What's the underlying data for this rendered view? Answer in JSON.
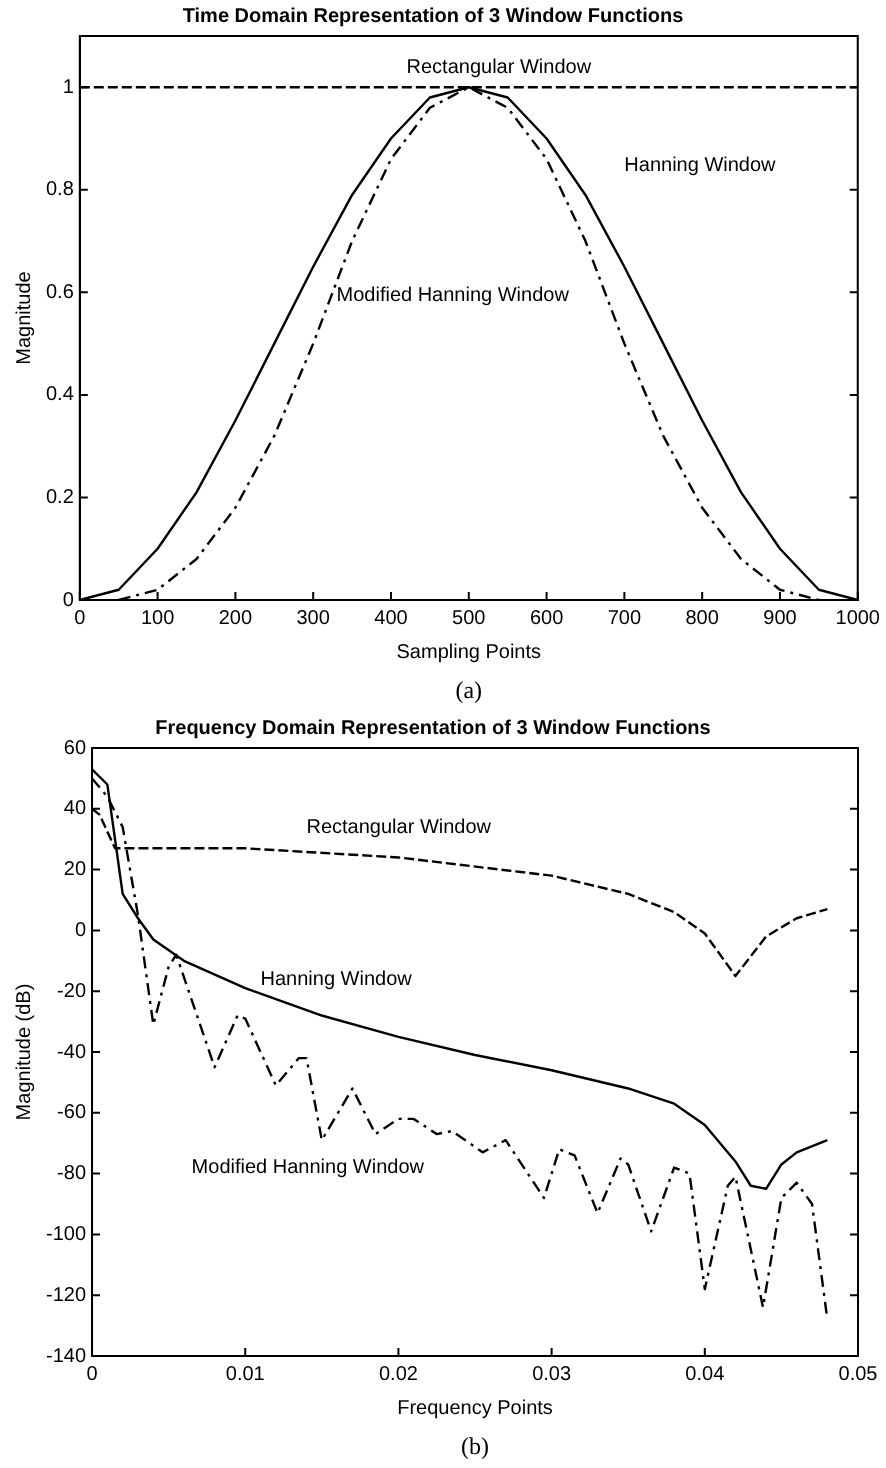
{
  "chart_data": [
    {
      "type": "line",
      "title": "Time Domain Representation of 3 Window Functions",
      "xlabel": "Sampling Points",
      "ylabel": "Magnitude",
      "xlim": [
        0,
        1000
      ],
      "xticks": [
        0,
        100,
        200,
        300,
        400,
        500,
        600,
        700,
        800,
        900,
        1000
      ],
      "ylim": [
        0,
        1.1
      ],
      "yticks": [
        0,
        0.2,
        0.4,
        0.6,
        0.8,
        1
      ],
      "grid": false,
      "legend": false,
      "marker": "none",
      "series": [
        {
          "name": "Rectangular Window",
          "color": "#000000",
          "line_style": "dashed",
          "x": [
            0,
            1000
          ],
          "values": [
            1,
            1
          ]
        },
        {
          "name": "Hanning Window",
          "color": "#000000",
          "line_style": "solid",
          "x": [
            0,
            50,
            100,
            150,
            200,
            250,
            300,
            350,
            400,
            450,
            500,
            550,
            600,
            650,
            700,
            750,
            800,
            850,
            900,
            950,
            1000
          ],
          "values": [
            0,
            0.02,
            0.1,
            0.21,
            0.35,
            0.5,
            0.65,
            0.79,
            0.9,
            0.98,
            1,
            0.98,
            0.9,
            0.79,
            0.65,
            0.5,
            0.35,
            0.21,
            0.1,
            0.02,
            0
          ]
        },
        {
          "name": "Modified Hanning Window",
          "color": "#000000",
          "line_style": "dashdot",
          "x": [
            50,
            100,
            150,
            200,
            250,
            300,
            350,
            400,
            450,
            500,
            550,
            600,
            650,
            700,
            750,
            800,
            850,
            900,
            950
          ],
          "values": [
            0,
            0.02,
            0.08,
            0.18,
            0.32,
            0.5,
            0.7,
            0.86,
            0.96,
            1,
            0.96,
            0.86,
            0.7,
            0.5,
            0.32,
            0.18,
            0.08,
            0.02,
            0
          ]
        }
      ],
      "annotations": [
        "(a)"
      ]
    },
    {
      "type": "line",
      "title": "Frequency Domain Representation of 3 Window Functions",
      "xlabel": "Frequency Points",
      "ylabel": "Magnitude (dB)",
      "xlim": [
        0,
        0.05
      ],
      "xticks": [
        0,
        0.01,
        0.02,
        0.03,
        0.04,
        0.05
      ],
      "ylim": [
        -140,
        60
      ],
      "yticks": [
        -140,
        -120,
        -100,
        -80,
        -60,
        -40,
        -20,
        0,
        20,
        40,
        60
      ],
      "grid": false,
      "legend": false,
      "marker": "none",
      "series": [
        {
          "name": "Rectangular Window",
          "color": "#000000",
          "line_style": "dashed",
          "x": [
            0,
            0.0005,
            0.0015,
            0.01,
            0.02,
            0.03,
            0.035,
            0.038,
            0.04,
            0.042,
            0.044,
            0.046,
            0.048
          ],
          "values": [
            40,
            38,
            27,
            27,
            24,
            18,
            12,
            6,
            -1,
            -15,
            -2,
            4,
            7
          ]
        },
        {
          "name": "Hanning Window",
          "color": "#000000",
          "line_style": "solid",
          "x": [
            0,
            0.001,
            0.0015,
            0.002,
            0.003,
            0.004,
            0.006,
            0.01,
            0.015,
            0.02,
            0.025,
            0.03,
            0.035,
            0.038,
            0.04,
            0.042,
            0.043,
            0.044,
            0.045,
            0.046,
            0.048
          ],
          "values": [
            53,
            48,
            30,
            12,
            4,
            -3,
            -10,
            -19,
            -28,
            -35,
            -41,
            -46,
            -52,
            -57,
            -64,
            -76,
            -84,
            -85,
            -77,
            -73,
            -69
          ]
        },
        {
          "name": "Modified Hanning Window",
          "color": "#000000",
          "line_style": "dashdot",
          "x": [
            0,
            0.001,
            0.002,
            0.003,
            0.004,
            0.005,
            0.0055,
            0.008,
            0.0095,
            0.01,
            0.012,
            0.0135,
            0.014,
            0.015,
            0.017,
            0.0185,
            0.02,
            0.021,
            0.0225,
            0.0235,
            0.0255,
            0.027,
            0.0295,
            0.0305,
            0.0315,
            0.033,
            0.0345,
            0.035,
            0.0365,
            0.038,
            0.039,
            0.04,
            0.0415,
            0.042,
            0.0438,
            0.045,
            0.046,
            0.047,
            0.048
          ],
          "values": [
            50,
            44,
            34,
            5,
            -31,
            -12,
            -8,
            -45,
            -28,
            -29,
            -51,
            -42,
            -42,
            -69,
            -52,
            -67,
            -62,
            -62,
            -67,
            -66,
            -73,
            -69,
            -88,
            -72,
            -74,
            -93,
            -75,
            -77,
            -99,
            -78,
            -80,
            -118,
            -84,
            -81,
            -124,
            -88,
            -83,
            -90,
            -128
          ]
        }
      ],
      "annotations": [
        "(b)"
      ]
    }
  ]
}
